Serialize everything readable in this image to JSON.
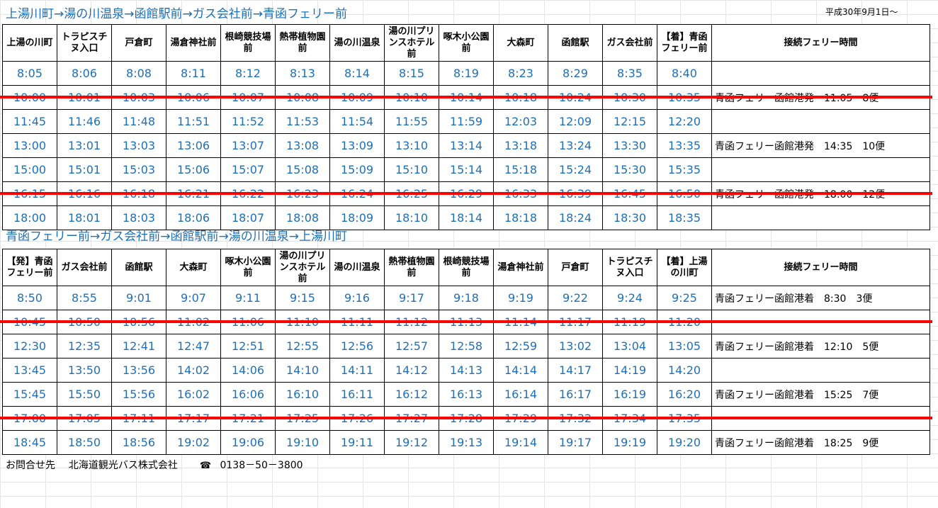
{
  "outbound": {
    "title": "上湯川町→湯の川温泉→函館駅前→ガス会社前→青函フェリー前",
    "effective_date": "平成30年9月1日～",
    "headers": [
      "上湯の川町",
      "トラピスチヌ入口",
      "戸倉町",
      "湯倉神社前",
      "根崎競技場前",
      "熱帯植物園前",
      "湯の川温泉",
      "湯の川プリンスホテル前",
      "啄木小公園前",
      "大森町",
      "函館駅",
      "ガス会社前",
      "【着】青函フェリー前",
      "接続フェリー時間"
    ],
    "rows": [
      {
        "times": [
          "8:05",
          "8:06",
          "8:08",
          "8:11",
          "8:12",
          "8:13",
          "8:14",
          "8:15",
          "8:19",
          "8:23",
          "8:29",
          "8:35",
          "8:40"
        ],
        "note": ""
      },
      {
        "times": [
          "10:00",
          "10:01",
          "10:03",
          "10:06",
          "10:07",
          "10:08",
          "10:09",
          "10:10",
          "10:14",
          "10:18",
          "10:24",
          "10:30",
          "10:35"
        ],
        "note": "青函フェリー函館港発　11:05　8便",
        "cancelled": true
      },
      {
        "times": [
          "11:45",
          "11:46",
          "11:48",
          "11:51",
          "11:52",
          "11:53",
          "11:54",
          "11:55",
          "11:59",
          "12:03",
          "12:09",
          "12:15",
          "12:20"
        ],
        "note": ""
      },
      {
        "times": [
          "13:00",
          "13:01",
          "13:03",
          "13:06",
          "13:07",
          "13:08",
          "13:09",
          "13:10",
          "13:14",
          "13:18",
          "13:24",
          "13:30",
          "13:35"
        ],
        "note": "青函フェリー函館港発　14:35　10便"
      },
      {
        "times": [
          "15:00",
          "15:01",
          "15:03",
          "15:06",
          "15:07",
          "15:08",
          "15:09",
          "15:10",
          "15:14",
          "15:18",
          "15:24",
          "15:30",
          "15:35"
        ],
        "note": ""
      },
      {
        "times": [
          "16:15",
          "16:16",
          "16:18",
          "16:21",
          "16:22",
          "16:23",
          "16:24",
          "16:25",
          "16:29",
          "16:33",
          "16:39",
          "16:45",
          "16:50"
        ],
        "note": "青函フェリー函館港発　18:00　12便",
        "cancelled": true
      },
      {
        "times": [
          "18:00",
          "18:01",
          "18:03",
          "18:06",
          "18:07",
          "18:08",
          "18:09",
          "18:10",
          "18:14",
          "18:18",
          "18:24",
          "18:30",
          "18:35"
        ],
        "note": ""
      }
    ]
  },
  "inbound": {
    "title": "青函フェリー前→ガス会社前→函館駅前→湯の川温泉→上湯川町",
    "headers": [
      "【発】青函フェリー前",
      "ガス会社前",
      "函館駅",
      "大森町",
      "啄木小公園前",
      "湯の川プリンスホテル前",
      "湯の川温泉",
      "熱帯植物園前",
      "根崎競技場前",
      "湯倉神社前",
      "戸倉町",
      "トラピスチヌ入口",
      "【着】上湯の川町",
      "接続フェリー時間"
    ],
    "rows": [
      {
        "times": [
          "8:50",
          "8:55",
          "9:01",
          "9:07",
          "9:11",
          "9:15",
          "9:16",
          "9:17",
          "9:18",
          "9:19",
          "9:22",
          "9:24",
          "9:25"
        ],
        "note": "青函フェリー函館港着　8:30　3便"
      },
      {
        "times": [
          "10:45",
          "10:50",
          "10:56",
          "11:02",
          "11:06",
          "11:10",
          "11:11",
          "11:12",
          "11:13",
          "11:14",
          "11:17",
          "11:19",
          "11:20"
        ],
        "note": "",
        "cancelled": true
      },
      {
        "times": [
          "12:30",
          "12:35",
          "12:41",
          "12:47",
          "12:51",
          "12:55",
          "12:56",
          "12:57",
          "12:58",
          "12:59",
          "13:02",
          "13:04",
          "13:05"
        ],
        "note": "青函フェリー函館港着　12:10　5便"
      },
      {
        "times": [
          "13:45",
          "13:50",
          "13:56",
          "14:02",
          "14:06",
          "14:10",
          "14:11",
          "14:12",
          "14:13",
          "14:14",
          "14:17",
          "14:19",
          "14:20"
        ],
        "note": ""
      },
      {
        "times": [
          "15:45",
          "15:50",
          "15:56",
          "16:02",
          "16:06",
          "16:10",
          "16:11",
          "16:12",
          "16:13",
          "16:14",
          "16:17",
          "16:19",
          "16:20"
        ],
        "note": "青函フェリー函館港着　15:25　7便"
      },
      {
        "times": [
          "17:00",
          "17:05",
          "17:11",
          "17:17",
          "17:21",
          "17:25",
          "17:26",
          "17:27",
          "17:28",
          "17:29",
          "17:32",
          "17:34",
          "17:35"
        ],
        "note": "",
        "cancelled": true
      },
      {
        "times": [
          "18:45",
          "18:50",
          "18:56",
          "19:02",
          "19:06",
          "19:10",
          "19:11",
          "19:12",
          "19:13",
          "19:14",
          "19:17",
          "19:19",
          "19:20"
        ],
        "note": "青函フェリー函館港着　18:25　9便"
      }
    ]
  },
  "footer": {
    "contact_label": "お問合せ先",
    "company": "北海道観光バス株式会社",
    "phone_icon": "telephone-icon",
    "phone": "0138－50－3800"
  },
  "colors": {
    "time_text": "#1f6fb5",
    "title_text": "#1f6fb5",
    "strike_line": "#ff0000"
  }
}
